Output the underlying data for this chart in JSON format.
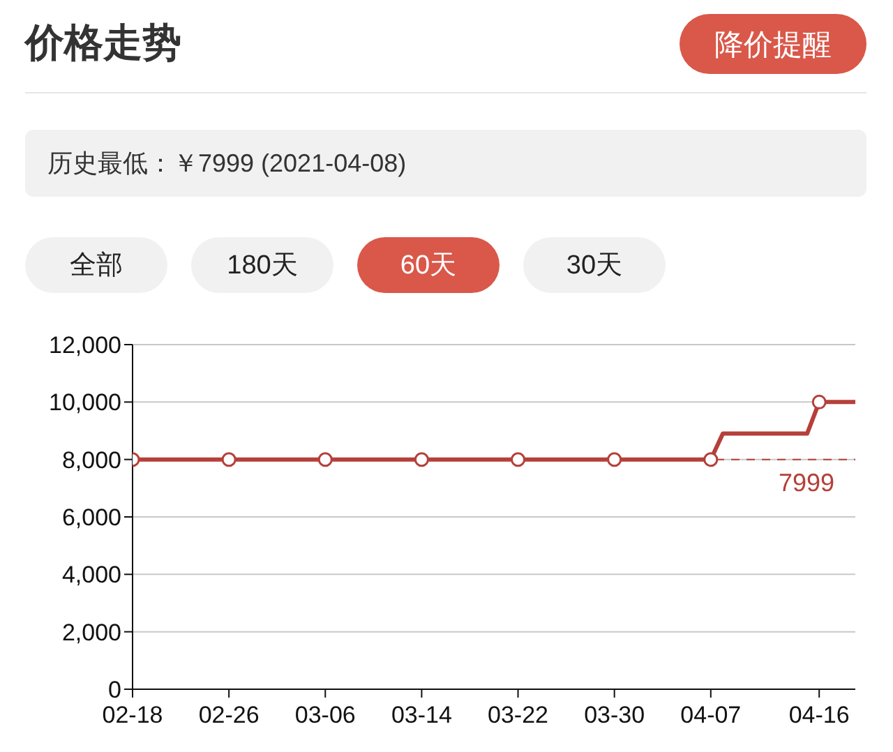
{
  "chart_data": {
    "type": "line",
    "title": "价格走势",
    "annotations": [
      "降价提醒",
      "历史最低：￥7999 (2021-04-08)",
      "全部",
      "180天",
      "60天",
      "30天"
    ],
    "xlim": [
      "--02-18",
      "--04-19"
    ],
    "xticks": [
      {
        "value": "--02-18",
        "label": "02-18"
      },
      {
        "value": "--02-26",
        "label": "02-26"
      },
      {
        "value": "--03-06",
        "label": "03-06"
      },
      {
        "value": "--03-14",
        "label": "03-14"
      },
      {
        "value": "--03-22",
        "label": "03-22"
      },
      {
        "value": "--03-30",
        "label": "03-30"
      },
      {
        "value": "--04-07",
        "label": "04-07"
      },
      {
        "value": "--04-16",
        "label": "04-16"
      }
    ],
    "ylim": [
      0,
      12000
    ],
    "yticks": [
      {
        "value": 0,
        "label": "0"
      },
      {
        "value": 2000,
        "label": "2,000"
      },
      {
        "value": 4000,
        "label": "4,000"
      },
      {
        "value": 6000,
        "label": "6,000"
      },
      {
        "value": 8000,
        "label": "8,000"
      },
      {
        "value": 10000,
        "label": "10,000"
      },
      {
        "value": 12000,
        "label": "12,000"
      }
    ],
    "grid": "y",
    "line_style": "solid",
    "ref_lines": [
      {
        "axis": "y",
        "value": 7999,
        "label": "7999",
        "color": "#b5403a",
        "line_style": "dashed"
      }
    ],
    "series": [
      {
        "color": "#b5403a",
        "marker": "none",
        "x": [
          "--02-18",
          "--04-07",
          "--04-08",
          "--04-15",
          "--04-16",
          "--04-19"
        ],
        "values": [
          7999,
          7999,
          8900,
          8900,
          10000,
          10000
        ]
      },
      {
        "type": "scatter",
        "color": "#b5403a",
        "marker": "circle",
        "x": [
          "--02-18",
          "--02-26",
          "--03-06",
          "--03-14",
          "--03-22",
          "--03-30",
          "--04-07",
          "--04-16"
        ],
        "values": [
          7999,
          7999,
          7999,
          7999,
          7999,
          7999,
          7999,
          10000
        ]
      }
    ]
  }
}
